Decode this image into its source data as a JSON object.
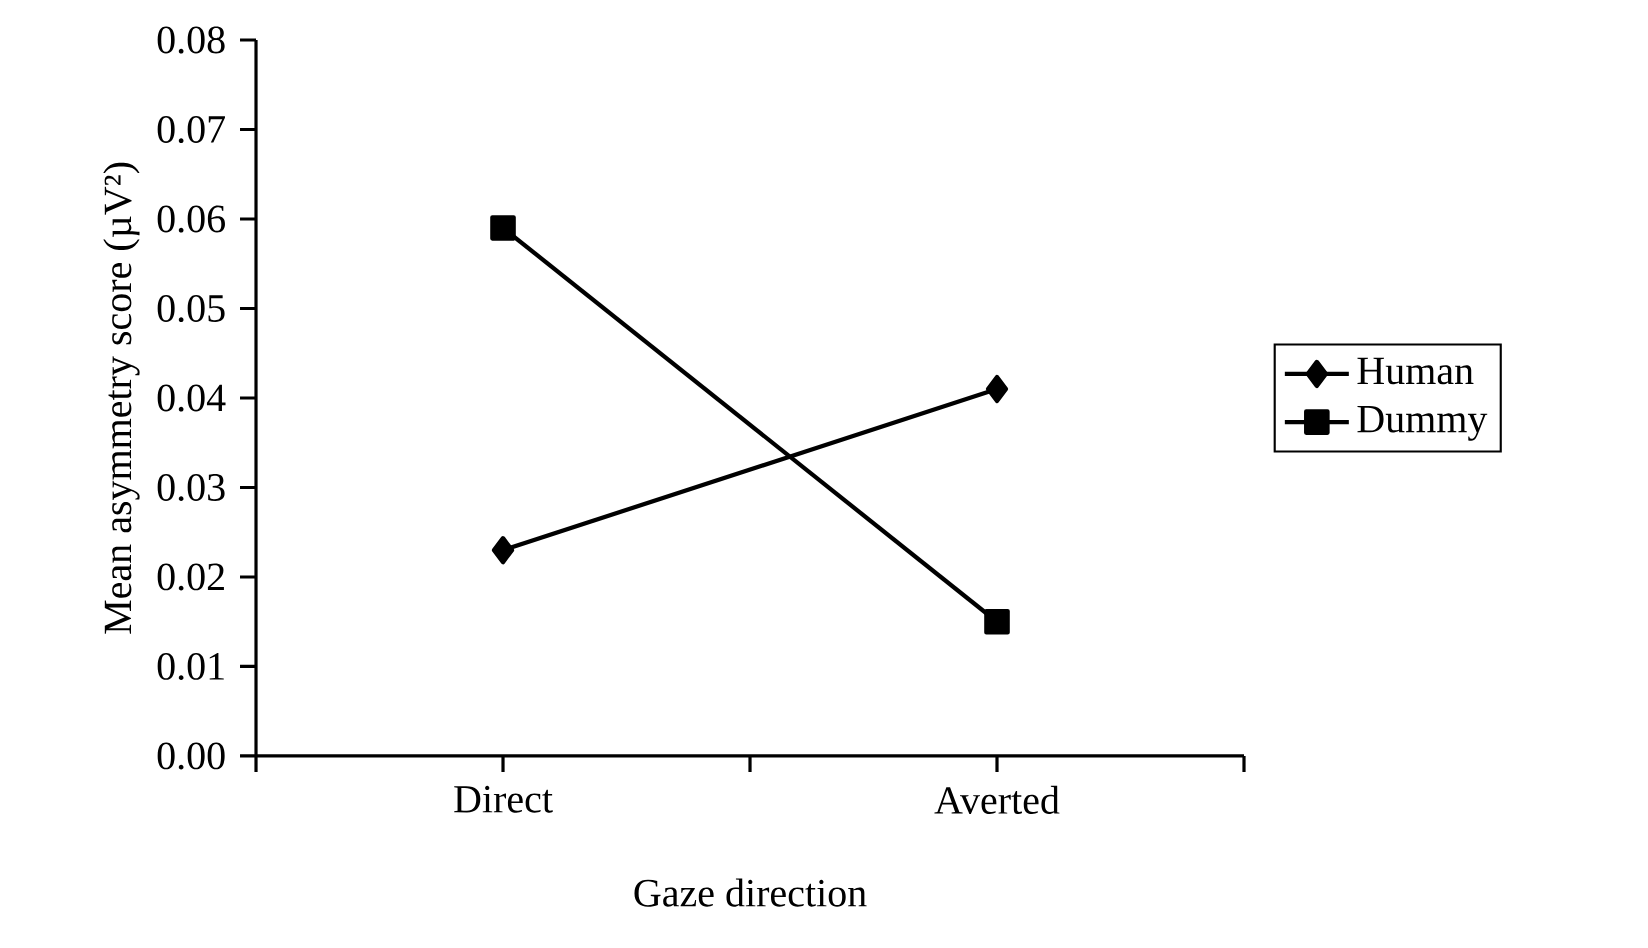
{
  "chart_data": {
    "type": "line",
    "xlabel": "Gaze direction",
    "ylabel": "Mean asymmetry  score (µV²)",
    "categories": [
      "Direct",
      "Averted"
    ],
    "series": [
      {
        "name": "Human",
        "color": "#000000",
        "marker": "diamond",
        "values": [
          0.023,
          0.041
        ]
      },
      {
        "name": "Dummy",
        "color": "#000000",
        "marker": "square",
        "values": [
          0.059,
          0.015
        ]
      }
    ],
    "ylim": [
      0,
      0.08
    ],
    "yticks": [
      {
        "value": 0,
        "label": "0.00"
      },
      {
        "value": 0.01,
        "label": "0.01"
      },
      {
        "value": 0.02,
        "label": "0.02"
      },
      {
        "value": 0.03,
        "label": "0.03"
      },
      {
        "value": 0.04,
        "label": "0.04"
      },
      {
        "value": 0.05,
        "label": "0.05"
      },
      {
        "value": 0.06,
        "label": "0.06"
      },
      {
        "value": 0.07,
        "label": "0.07"
      },
      {
        "value": 0.08,
        "label": "0.08"
      }
    ],
    "grid": false,
    "legend": "right",
    "line_style": "solid"
  }
}
